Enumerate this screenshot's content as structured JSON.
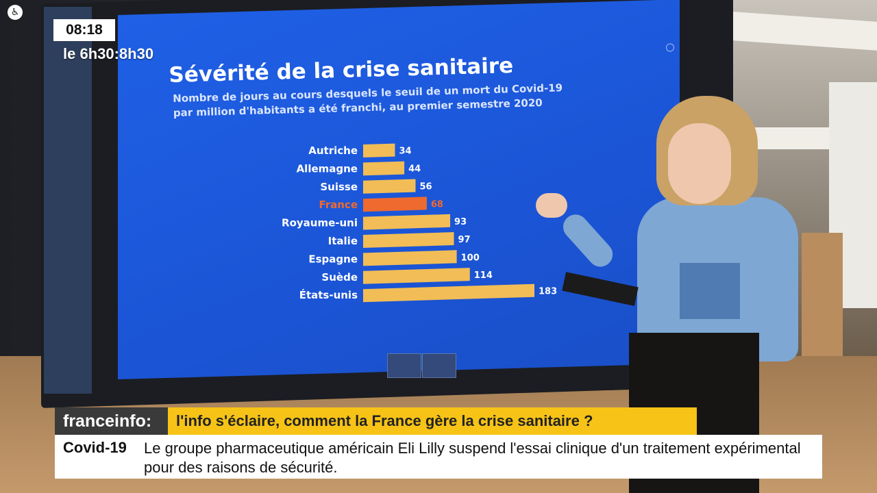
{
  "overlay": {
    "clock": "08:18",
    "show_name": "le 6h30:8h30",
    "channel_icon": "accessibility-icon",
    "brand": "franceinfo:",
    "headline": "l'info s'éclaire, comment la France gère la crise sanitaire ?",
    "ticker_topic": "Covid-19",
    "ticker_text": "Le groupe pharmaceutique américain Eli Lilly suspend l'essai clinique d'un traitement expérimental pour des raisons de sécurité."
  },
  "chart_data": {
    "type": "bar",
    "orientation": "horizontal",
    "title": "Sévérité de la crise sanitaire",
    "subtitle_lines": [
      "Nombre de jours au cours desquels le seuil de un mort du Covid-19",
      "par million d'habitants a été franchi, au premier semestre 2020"
    ],
    "categories": [
      "Autriche",
      "Allemagne",
      "Suisse",
      "France",
      "Royaume-uni",
      "Italie",
      "Espagne",
      "Suède",
      "États-unis"
    ],
    "values": [
      34,
      44,
      56,
      68,
      93,
      97,
      100,
      114,
      183
    ],
    "highlight": "France",
    "bar_color": "#f2bd56",
    "highlight_color": "#ee6a2e",
    "label_color": "#ffffff",
    "grid": false
  }
}
